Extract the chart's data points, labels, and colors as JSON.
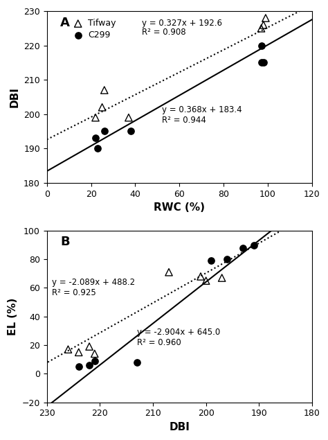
{
  "panel_A": {
    "tifway_x": [
      22,
      25,
      26,
      37,
      97,
      98,
      99
    ],
    "tifway_y": [
      199,
      202,
      207,
      199,
      225,
      226,
      228
    ],
    "c299_x": [
      22,
      23,
      26,
      38,
      97,
      97,
      98
    ],
    "c299_y": [
      193,
      190,
      195,
      195,
      215,
      220,
      215
    ],
    "tifway_eq": "y = 0.327x + 192.6",
    "tifway_r2": "R² = 0.908",
    "c299_eq": "y = 0.368x + 183.4",
    "c299_r2": "R² = 0.944",
    "tifway_slope": 0.327,
    "tifway_intercept": 192.6,
    "c299_slope": 0.368,
    "c299_intercept": 183.4,
    "xlabel": "RWC (%)",
    "ylabel": "DBI",
    "xlim": [
      0,
      120
    ],
    "ylim": [
      180,
      230
    ],
    "xticks": [
      0,
      20,
      40,
      60,
      80,
      100,
      120
    ],
    "yticks": [
      180,
      190,
      200,
      210,
      220,
      230
    ],
    "label": "A",
    "tifway_eq_x": 43,
    "tifway_eq_y": 226.5,
    "tifway_r2_y": 223.8,
    "c299_eq_x": 52,
    "c299_eq_y": 202.5
  },
  "panel_B": {
    "tifway_x": [
      226,
      224,
      222,
      221,
      207,
      201,
      200,
      197
    ],
    "tifway_y": [
      17,
      15,
      19,
      14,
      71,
      68,
      65,
      67
    ],
    "c299_x": [
      224,
      222,
      221,
      213,
      199,
      196,
      193,
      191
    ],
    "c299_y": [
      5,
      6,
      9,
      8,
      79,
      80,
      88,
      90
    ],
    "tifway_eq": "y = -2.089x + 488.2",
    "tifway_r2": "R² = 0.925",
    "c299_eq": "y = -2.904x + 645.0",
    "c299_r2": "R² = 0.960",
    "tifway_slope": -2.089,
    "tifway_intercept": 488.2,
    "c299_slope": -2.904,
    "c299_intercept": 645.0,
    "xlabel": "DBI",
    "ylabel": "EL (%)",
    "xlim": [
      230,
      180
    ],
    "ylim": [
      -20,
      100
    ],
    "xticks": [
      230,
      220,
      210,
      200,
      190,
      180
    ],
    "yticks": [
      -20,
      0,
      20,
      40,
      60,
      80,
      100
    ],
    "label": "B",
    "tifway_eq_x": 229,
    "tifway_eq_y": 67,
    "c299_eq_x": 213,
    "c299_eq_y": 32
  },
  "background_color": "#ffffff",
  "legend_tifway": "Tifway",
  "legend_c299": "C299"
}
